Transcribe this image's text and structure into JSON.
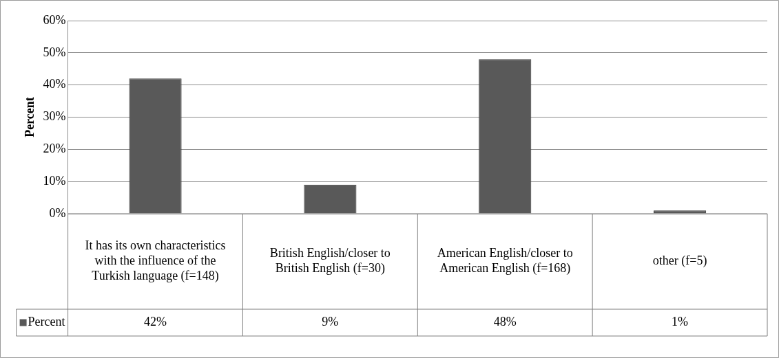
{
  "chart_data": {
    "type": "bar",
    "ylabel": "Percent",
    "categories": [
      "It has its own characteristics with the influence of the Turkish language (f=148)",
      "British English/closer to British English (f=30)",
      "American English/closer to American English (f=168)",
      "other (f=5)"
    ],
    "series": [
      {
        "name": "Percent",
        "color": "#595959",
        "values": [
          42,
          9,
          48,
          1
        ],
        "value_labels": [
          "42%",
          "9%",
          "48%",
          "1%"
        ]
      }
    ],
    "ylim": [
      0,
      60
    ],
    "yticks": [
      {
        "value": 0,
        "label": "0%"
      },
      {
        "value": 10,
        "label": "10%"
      },
      {
        "value": 20,
        "label": "20%"
      },
      {
        "value": 30,
        "label": "30%"
      },
      {
        "value": 40,
        "label": "40%"
      },
      {
        "value": 50,
        "label": "50%"
      },
      {
        "value": 60,
        "label": "60%"
      }
    ],
    "grid": "y",
    "legend": "bottom"
  }
}
